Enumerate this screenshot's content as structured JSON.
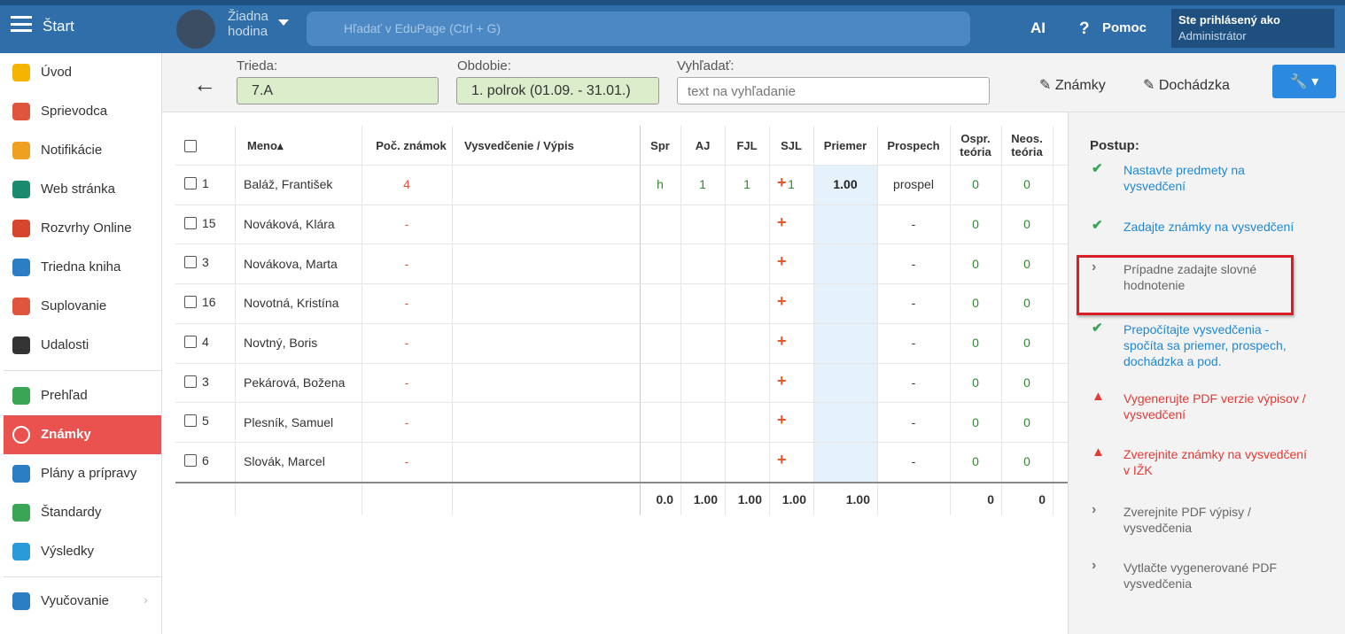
{
  "header": {
    "menu": "Štart",
    "lesson": [
      "Žiadna",
      "hodina"
    ],
    "search_placeholder": "Hľadať v EduPage (Ctrl + G)",
    "ai": "AI",
    "help": "Pomoc",
    "user_label": "Ste prihlásený ako",
    "user": "Administrátor"
  },
  "sidebar": {
    "items": [
      "Úvod",
      "Sprievodca",
      "Notifikácie",
      "Web stránka",
      "Rozvrhy Online",
      "Triedna kniha",
      "Suplovanie",
      "Udalosti",
      "Prehľad",
      "Známky",
      "Plány a prípravy",
      "Štandardy",
      "Výsledky",
      "Vyučovanie"
    ],
    "active": 9
  },
  "toolbar": {
    "class_label": "Trieda:",
    "class_value": "7.A",
    "period_label": "Obdobie:",
    "period_value": "1. polrok (01.09. - 31.01.)",
    "search_label": "Vyhľadať:",
    "search_placeholder": "text na vyhľadanie",
    "buttons": [
      "Známky",
      "Dochádzka"
    ]
  },
  "table": {
    "columns": [
      "Meno",
      "Poč. známok",
      "Vysvedčenie / Výpis",
      "Spr",
      "AJ",
      "FJL",
      "SJL",
      "Priemer",
      "Prospech",
      "Ospr. teória",
      "Neos. teória"
    ],
    "rows": [
      [
        "1",
        "Baláž, František",
        "4",
        "h",
        "1",
        "1",
        "1",
        "1.00",
        "prospel",
        "0",
        "0"
      ],
      [
        "15",
        "Nováková, Klára",
        "-",
        "",
        "",
        "",
        "",
        "",
        "-",
        "0",
        "0"
      ],
      [
        "3",
        "Novákova, Marta",
        "-",
        "",
        "",
        "",
        "",
        "",
        "-",
        "0",
        "0"
      ],
      [
        "16",
        "Novotná, Kristína",
        "-",
        "",
        "",
        "",
        "",
        "",
        "-",
        "0",
        "0"
      ],
      [
        "4",
        "Novtný, Boris",
        "-",
        "",
        "",
        "",
        "",
        "",
        "-",
        "0",
        "0"
      ],
      [
        "3",
        "Pekárová, Božena",
        "-",
        "",
        "",
        "",
        "",
        "",
        "-",
        "0",
        "0"
      ],
      [
        "5",
        "Plesník, Samuel",
        "-",
        "",
        "",
        "",
        "",
        "",
        "-",
        "0",
        "0"
      ],
      [
        "6",
        "Slovák, Marcel",
        "-",
        "",
        "",
        "",
        "",
        "",
        "-",
        "0",
        "0"
      ]
    ],
    "footer": [
      "0.0",
      "1.00",
      "1.00",
      "1.00",
      "1.00",
      "",
      "0",
      "0"
    ]
  },
  "panel": {
    "title": "Postup:",
    "steps": [
      {
        "status": "ok",
        "text": "Nastavte predmety na vysvedčení"
      },
      {
        "status": "ok",
        "text": "Zadajte známky na vysvedčení"
      },
      {
        "status": "next",
        "text": "Prípadne zadajte slovné hodnotenie",
        "highlight": true
      },
      {
        "status": "ok",
        "text": "Prepočítajte vysvedčenia - spočíta sa priemer, prospech, dochádzka a pod."
      },
      {
        "status": "warn",
        "text": "Vygenerujte PDF verzie výpisov / vysvedčení"
      },
      {
        "status": "warn",
        "text": "Zverejnite známky na vysvedčení v IŽK"
      },
      {
        "status": "next",
        "text": "Zverejnite PDF výpisy / vysvedčenia"
      },
      {
        "status": "next",
        "text": "Vytlačte vygenerované PDF vysvedčenia"
      }
    ]
  }
}
